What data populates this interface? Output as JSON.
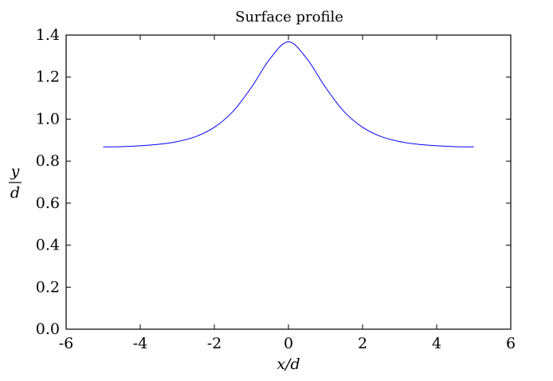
{
  "chart_data": {
    "type": "line",
    "title": "Surface profile",
    "xlabel": "x/d",
    "ylabel_numerator": "y",
    "ylabel_denominator": "d",
    "xlim": [
      -6,
      6
    ],
    "ylim": [
      0,
      1.4
    ],
    "xticks": [
      "-6",
      "-4",
      "-2",
      "0",
      "2",
      "4",
      "6"
    ],
    "yticks": [
      "0.0",
      "0.2",
      "0.4",
      "0.6",
      "0.8",
      "1.0",
      "1.2",
      "1.4"
    ],
    "grid": false,
    "legend": "none",
    "series": [
      {
        "color": "#0000ff",
        "x": [
          -5.0,
          -4.5,
          -4.0,
          -3.5,
          -3.0,
          -2.5,
          -2.0,
          -1.5,
          -1.0,
          -0.5,
          0.0,
          0.5,
          1.0,
          1.5,
          2.0,
          2.5,
          3.0,
          3.5,
          4.0,
          4.5,
          5.0
        ],
        "y": [
          0.868,
          0.869,
          0.873,
          0.88,
          0.893,
          0.917,
          0.961,
          1.036,
          1.151,
          1.287,
          1.368,
          1.287,
          1.151,
          1.036,
          0.961,
          0.917,
          0.893,
          0.88,
          0.873,
          0.869,
          0.868
        ]
      }
    ]
  }
}
